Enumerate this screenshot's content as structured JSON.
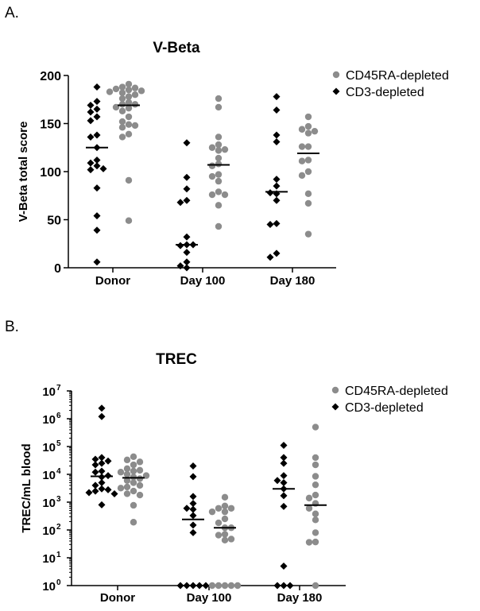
{
  "colors": {
    "gray": "#8c8c8c",
    "black": "#000000"
  },
  "chart_data": [
    {
      "panel": "A.",
      "type": "scatter",
      "title": "V-Beta",
      "xlabel": "",
      "ylabel": "V-Beta total score",
      "yscale": "linear",
      "ylim": [
        0,
        200
      ],
      "yticks": [
        0,
        50,
        100,
        150,
        200
      ],
      "categories": [
        "Donor",
        "Day 100",
        "Day 180"
      ],
      "legend": {
        "placement": "top-right",
        "entries": [
          "CD45RA-depleted",
          "CD3-depleted"
        ]
      },
      "series": [
        {
          "name": "CD3-depleted",
          "marker": "diamond",
          "color": "#000000",
          "values": [
            [
              188,
              173,
              169,
              165,
              162,
              157,
              153,
              138,
              136,
              125,
              112,
              109,
              106,
              102,
              103,
              83,
              54,
              39,
              6
            ],
            [
              130,
              94,
              82,
              70,
              68,
              32,
              24,
              23,
              24,
              16,
              6,
              0,
              2
            ],
            [
              178,
              164,
              138,
              131,
              92,
              85,
              77,
              78,
              70,
              46,
              45,
              15,
              11
            ]
          ],
          "medians": [
            125,
            24,
            79
          ]
        },
        {
          "name": "CD45RA-depleted",
          "marker": "circle",
          "color": "#8c8c8c",
          "values": [
            [
              191,
              188,
              187,
              186,
              185,
              184,
              183,
              182,
              180,
              178,
              176,
              172,
              170,
              170,
              167,
              166,
              163,
              157,
              152,
              149,
              148,
              146,
              139,
              136,
              91,
              49
            ],
            [
              176,
              167,
              136,
              128,
              125,
              123,
              122,
              114,
              108,
              106,
              97,
              95,
              90,
              79,
              76,
              76,
              65,
              43
            ],
            [
              157,
              147,
              144,
              142,
              140,
              126,
              126,
              112,
              111,
              100,
              96,
              77,
              67,
              35
            ]
          ],
          "medians": [
            169,
            107,
            119
          ]
        }
      ]
    },
    {
      "panel": "B.",
      "type": "scatter",
      "title": "TREC",
      "xlabel": "",
      "ylabel": "TREC/mL blood",
      "yscale": "log10",
      "ylim": [
        1,
        10000000
      ],
      "ytick_exponents": [
        "0",
        "1",
        "2",
        "3",
        "4",
        "5",
        "6",
        "7"
      ],
      "ytick_base": "10",
      "categories": [
        "Donor",
        "Day 100",
        "Day 180"
      ],
      "legend": {
        "placement": "top-right",
        "entries": [
          "CD45RA-depleted",
          "CD3-depleted"
        ]
      },
      "series": [
        {
          "name": "CD3-depleted",
          "marker": "diamond",
          "color": "#000000",
          "values": [
            [
              2400000,
              1200000,
              40000,
              35000,
              30000,
              25000,
              22000,
              13000,
              12000,
              9000,
              8000,
              5000,
              4000,
              3000,
              2800,
              2500,
              2200,
              2000,
              800
            ],
            [
              20000,
              8300,
              1600,
              900,
              600,
              550,
              330,
              150,
              80,
              1,
              1,
              1,
              1,
              1
            ],
            [
              110000,
              40000,
              25000,
              9000,
              6000,
              5000,
              3000,
              1700,
              700,
              5,
              1,
              1,
              1
            ]
          ],
          "medians": [
            8500,
            240,
            3000
          ]
        },
        {
          "name": "CD45RA-depleted",
          "marker": "circle",
          "color": "#8c8c8c",
          "values": [
            [
              43000,
              33000,
              28000,
              22000,
              16000,
              14000,
              13000,
              12000,
              10000,
              9000,
              8000,
              7000,
              6000,
              5000,
              4000,
              3500,
              3200,
              2500,
              2000,
              1800,
              770,
              190
            ],
            [
              1500,
              730,
              600,
              600,
              450,
              450,
              250,
              180,
              120,
              120,
              70,
              65,
              47,
              43,
              1,
              1,
              1,
              1,
              1
            ],
            [
              500000,
              40000,
              22000,
              8500,
              4200,
              1800,
              1400,
              900,
              600,
              380,
              230,
              80,
              37,
              36,
              1
            ]
          ],
          "medians": [
            7500,
            120,
            780
          ]
        }
      ]
    }
  ]
}
